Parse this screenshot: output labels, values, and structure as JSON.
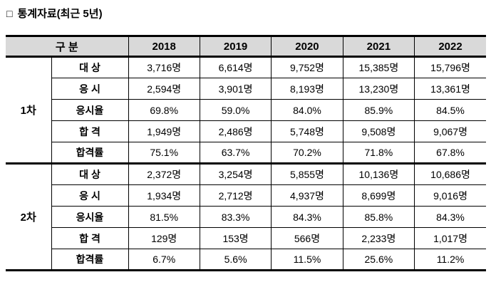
{
  "title_bullet": "□",
  "title": "통계자료(최근 5년)",
  "colors": {
    "header_bg": "#d9d9d9",
    "border": "#000000",
    "text": "#000000",
    "background": "#ffffff"
  },
  "table": {
    "header": {
      "group_label": "구 분",
      "years": [
        "2018",
        "2019",
        "2020",
        "2021",
        "2022"
      ]
    },
    "sections": [
      {
        "name": "1차",
        "rows": [
          {
            "label": "대 상",
            "values": [
              "3,716명",
              "6,614명",
              "9,752명",
              "15,385명",
              "15,796명"
            ]
          },
          {
            "label": "응 시",
            "values": [
              "2,594명",
              "3,901명",
              "8,193명",
              "13,230명",
              "13,361명"
            ]
          },
          {
            "label": "응시율",
            "values": [
              "69.8%",
              "59.0%",
              "84.0%",
              "85.9%",
              "84.5%"
            ]
          },
          {
            "label": "합 격",
            "values": [
              "1,949명",
              "2,486명",
              "5,748명",
              "9,508명",
              "9,067명"
            ]
          },
          {
            "label": "합격률",
            "values": [
              "75.1%",
              "63.7%",
              "70.2%",
              "71.8%",
              "67.8%"
            ]
          }
        ]
      },
      {
        "name": "2차",
        "rows": [
          {
            "label": "대 상",
            "values": [
              "2,372명",
              "3,254명",
              "5,855명",
              "10,136명",
              "10,686명"
            ]
          },
          {
            "label": "응 시",
            "values": [
              "1,934명",
              "2,712명",
              "4,937명",
              "8,699명",
              "9,016명"
            ]
          },
          {
            "label": "응시율",
            "values": [
              "81.5%",
              "83.3%",
              "84.3%",
              "85.8%",
              "84.3%"
            ]
          },
          {
            "label": "합 격",
            "values": [
              "129명",
              "153명",
              "566명",
              "2,233명",
              "1,017명"
            ]
          },
          {
            "label": "합격률",
            "values": [
              "6.7%",
              "5.6%",
              "11.5%",
              "25.6%",
              "11.2%"
            ]
          }
        ]
      }
    ]
  }
}
